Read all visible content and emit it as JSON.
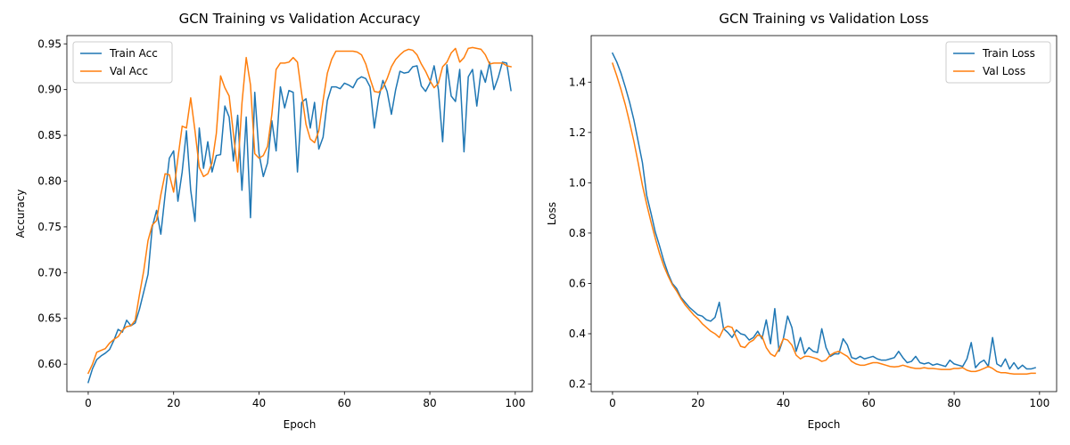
{
  "chart_data": [
    {
      "type": "line",
      "title": "GCN Training vs Validation Accuracy",
      "xlabel": "Epoch",
      "ylabel": "Accuracy",
      "xlim": [
        -5,
        104
      ],
      "ylim": [
        0.57,
        0.959
      ],
      "xticks": [
        0,
        20,
        40,
        60,
        80,
        100
      ],
      "yticks": [
        0.6,
        0.65,
        0.7,
        0.75,
        0.8,
        0.85,
        0.9,
        0.95
      ],
      "ytick_decimals": 2,
      "grid": false,
      "legend": "top-left",
      "series": [
        {
          "name": "Train Acc",
          "color": "#1f77b4",
          "values": [
            0.58,
            0.595,
            0.605,
            0.609,
            0.612,
            0.616,
            0.626,
            0.638,
            0.635,
            0.648,
            0.642,
            0.645,
            0.66,
            0.679,
            0.698,
            0.75,
            0.768,
            0.742,
            0.785,
            0.825,
            0.833,
            0.778,
            0.81,
            0.855,
            0.79,
            0.756,
            0.858,
            0.814,
            0.843,
            0.81,
            0.828,
            0.829,
            0.882,
            0.87,
            0.822,
            0.872,
            0.79,
            0.87,
            0.76,
            0.897,
            0.83,
            0.805,
            0.82,
            0.866,
            0.833,
            0.903,
            0.88,
            0.899,
            0.897,
            0.81,
            0.886,
            0.89,
            0.858,
            0.886,
            0.835,
            0.848,
            0.888,
            0.903,
            0.903,
            0.901,
            0.907,
            0.905,
            0.902,
            0.911,
            0.914,
            0.912,
            0.903,
            0.858,
            0.89,
            0.91,
            0.898,
            0.873,
            0.9,
            0.92,
            0.918,
            0.919,
            0.925,
            0.926,
            0.904,
            0.898,
            0.907,
            0.926,
            0.9,
            0.843,
            0.927,
            0.893,
            0.887,
            0.922,
            0.832,
            0.914,
            0.922,
            0.882,
            0.921,
            0.908,
            0.93,
            0.9,
            0.913,
            0.93,
            0.929,
            0.899
          ]
        },
        {
          "name": "Val Acc",
          "color": "#ff7f0e",
          "values": [
            0.59,
            0.6,
            0.613,
            0.615,
            0.617,
            0.623,
            0.627,
            0.63,
            0.637,
            0.641,
            0.642,
            0.648,
            0.676,
            0.702,
            0.735,
            0.752,
            0.757,
            0.785,
            0.808,
            0.807,
            0.788,
            0.825,
            0.86,
            0.858,
            0.891,
            0.855,
            0.815,
            0.805,
            0.808,
            0.82,
            0.852,
            0.915,
            0.902,
            0.893,
            0.852,
            0.81,
            0.885,
            0.935,
            0.905,
            0.83,
            0.825,
            0.828,
            0.838,
            0.873,
            0.922,
            0.929,
            0.929,
            0.93,
            0.935,
            0.93,
            0.895,
            0.862,
            0.846,
            0.842,
            0.855,
            0.888,
            0.918,
            0.933,
            0.942,
            0.942,
            0.942,
            0.942,
            0.942,
            0.941,
            0.938,
            0.928,
            0.912,
            0.898,
            0.897,
            0.902,
            0.912,
            0.925,
            0.933,
            0.938,
            0.942,
            0.944,
            0.943,
            0.938,
            0.928,
            0.92,
            0.91,
            0.902,
            0.907,
            0.925,
            0.93,
            0.94,
            0.945,
            0.93,
            0.935,
            0.945,
            0.946,
            0.945,
            0.944,
            0.938,
            0.928,
            0.929,
            0.929,
            0.929,
            0.926,
            0.925
          ]
        }
      ]
    },
    {
      "type": "line",
      "title": "GCN Training vs Validation Loss",
      "xlabel": "Epoch",
      "ylabel": "Loss",
      "xlim": [
        -5,
        104
      ],
      "ylim": [
        0.17,
        1.585
      ],
      "xticks": [
        0,
        20,
        40,
        60,
        80,
        100
      ],
      "yticks": [
        0.2,
        0.4,
        0.6,
        0.8,
        1.0,
        1.2,
        1.4
      ],
      "ytick_decimals": 1,
      "grid": false,
      "legend": "top-right",
      "series": [
        {
          "name": "Train Loss",
          "color": "#1f77b4",
          "values": [
            1.515,
            1.48,
            1.435,
            1.38,
            1.32,
            1.25,
            1.165,
            1.08,
            0.95,
            0.88,
            0.805,
            0.75,
            0.69,
            0.64,
            0.6,
            0.58,
            0.545,
            0.525,
            0.505,
            0.49,
            0.475,
            0.47,
            0.455,
            0.45,
            0.465,
            0.525,
            0.42,
            0.405,
            0.385,
            0.415,
            0.4,
            0.395,
            0.375,
            0.385,
            0.41,
            0.38,
            0.455,
            0.36,
            0.5,
            0.33,
            0.38,
            0.47,
            0.425,
            0.33,
            0.385,
            0.32,
            0.345,
            0.33,
            0.325,
            0.42,
            0.345,
            0.31,
            0.32,
            0.32,
            0.38,
            0.355,
            0.305,
            0.3,
            0.31,
            0.3,
            0.305,
            0.31,
            0.3,
            0.295,
            0.295,
            0.3,
            0.305,
            0.33,
            0.305,
            0.285,
            0.29,
            0.31,
            0.285,
            0.28,
            0.285,
            0.275,
            0.28,
            0.275,
            0.27,
            0.295,
            0.28,
            0.275,
            0.27,
            0.3,
            0.365,
            0.265,
            0.285,
            0.295,
            0.27,
            0.385,
            0.28,
            0.27,
            0.3,
            0.26,
            0.285,
            0.26,
            0.275,
            0.26,
            0.26,
            0.265
          ]
        },
        {
          "name": "Val Loss",
          "color": "#ff7f0e",
          "values": [
            1.475,
            1.425,
            1.37,
            1.31,
            1.24,
            1.165,
            1.08,
            0.99,
            0.915,
            0.845,
            0.78,
            0.72,
            0.67,
            0.63,
            0.595,
            0.57,
            0.54,
            0.515,
            0.495,
            0.475,
            0.46,
            0.44,
            0.425,
            0.41,
            0.4,
            0.385,
            0.42,
            0.43,
            0.425,
            0.385,
            0.35,
            0.345,
            0.365,
            0.375,
            0.395,
            0.39,
            0.345,
            0.32,
            0.31,
            0.34,
            0.38,
            0.375,
            0.355,
            0.315,
            0.3,
            0.31,
            0.31,
            0.305,
            0.3,
            0.29,
            0.295,
            0.315,
            0.325,
            0.33,
            0.32,
            0.31,
            0.29,
            0.28,
            0.275,
            0.275,
            0.28,
            0.285,
            0.285,
            0.28,
            0.275,
            0.27,
            0.268,
            0.27,
            0.275,
            0.27,
            0.265,
            0.262,
            0.262,
            0.265,
            0.262,
            0.262,
            0.26,
            0.258,
            0.258,
            0.258,
            0.262,
            0.262,
            0.265,
            0.255,
            0.25,
            0.25,
            0.255,
            0.262,
            0.27,
            0.262,
            0.25,
            0.245,
            0.245,
            0.242,
            0.24,
            0.24,
            0.24,
            0.24,
            0.243,
            0.243
          ]
        }
      ]
    }
  ]
}
